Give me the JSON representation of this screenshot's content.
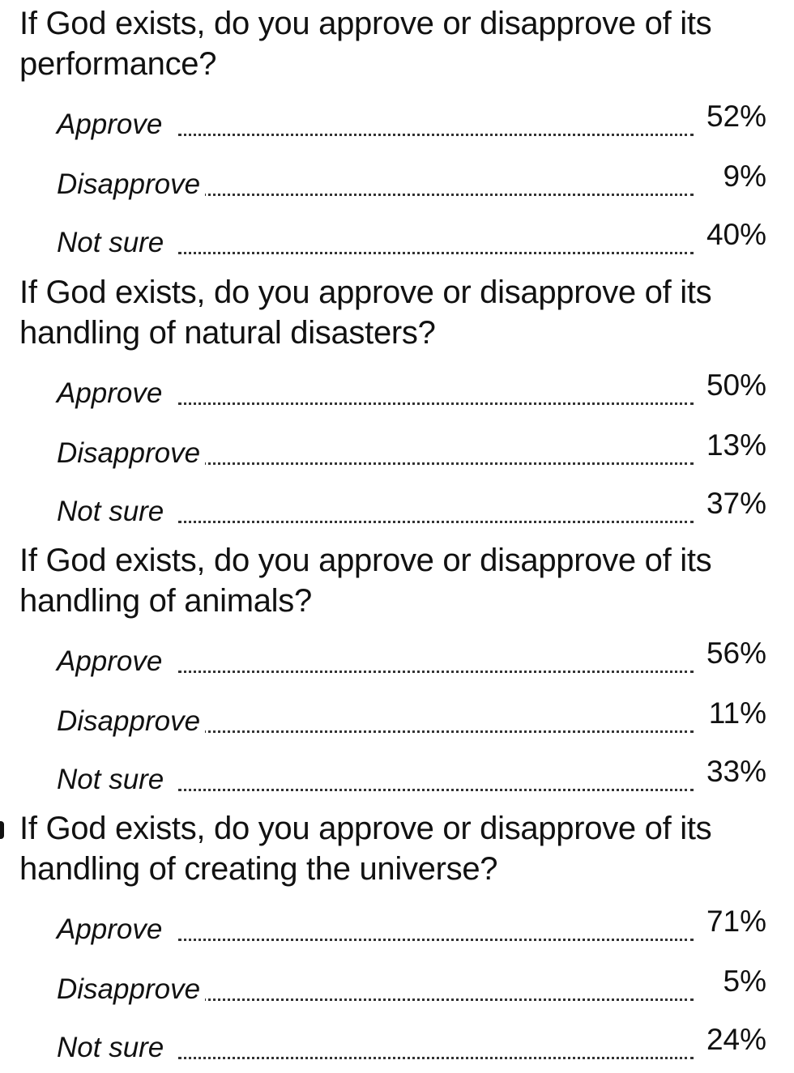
{
  "questions": [
    {
      "text": "If God exists, do you approve or disapprove of its performance?",
      "answers": [
        {
          "label": "Approve",
          "value": "52%"
        },
        {
          "label": "Disapprove",
          "value": "9%"
        },
        {
          "label": "Not sure",
          "value": "40%"
        }
      ]
    },
    {
      "text": "If God exists, do you approve or disapprove of its handling of natural disasters?",
      "answers": [
        {
          "label": "Approve",
          "value": "50%"
        },
        {
          "label": "Disapprove",
          "value": "13%"
        },
        {
          "label": "Not sure",
          "value": "37%"
        }
      ]
    },
    {
      "text": "If God exists, do you approve or disapprove of its handling of animals?",
      "answers": [
        {
          "label": "Approve",
          "value": "56%"
        },
        {
          "label": "Disapprove",
          "value": "11%"
        },
        {
          "label": "Not sure",
          "value": "33%"
        }
      ]
    },
    {
      "text": "If God exists, do you approve or disapprove of its handling of creating the universe?",
      "answers": [
        {
          "label": "Approve",
          "value": "71%"
        },
        {
          "label": "Disapprove",
          "value": "5%"
        },
        {
          "label": "Not sure",
          "value": "24%"
        }
      ]
    }
  ]
}
